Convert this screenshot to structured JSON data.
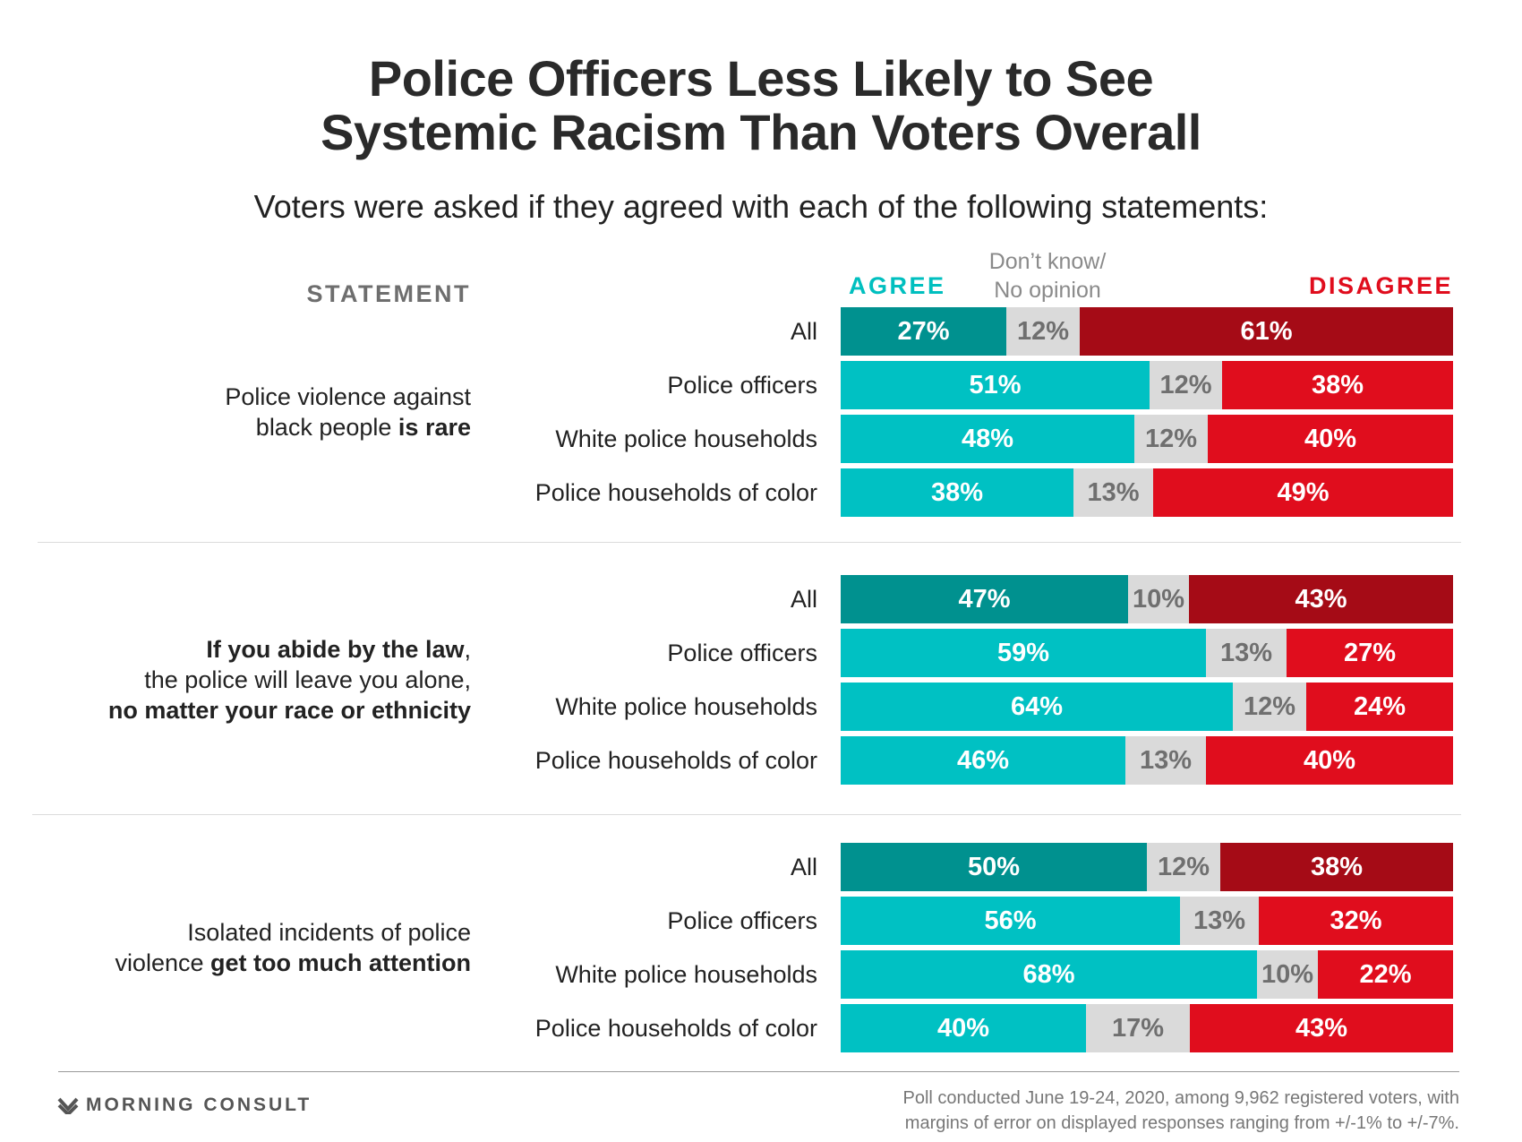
{
  "chart_data": {
    "type": "stacked-bar-horizontal",
    "title_line1": "Police Officers Less Likely to See",
    "title_line2": "Systemic Racism Than Voters Overall",
    "subtitle": "Voters were asked if they agreed with each of the following statements:",
    "column_header": "STATEMENT",
    "legend": {
      "agree": "AGREE",
      "dk_line1": "Don’t know/",
      "dk_line2": "No opinion",
      "disagree": "DISAGREE"
    },
    "colors": {
      "agree_all": "#00918f",
      "agree": "#00c1c3",
      "dk": "#dadada",
      "disagree_all": "#a50b16",
      "disagree": "#e00d1d"
    },
    "statements": [
      {
        "text_parts": [
          {
            "t": "Police violence against",
            "b": false
          },
          {
            "br": true
          },
          {
            "t": "black people ",
            "b": false
          },
          {
            "t": "is rare",
            "b": true
          }
        ],
        "groups": [
          {
            "label": "All",
            "agree": 27,
            "dk": 12,
            "disagree": 61
          },
          {
            "label": "Police officers",
            "agree": 51,
            "dk": 12,
            "disagree": 38
          },
          {
            "label": "White police households",
            "agree": 48,
            "dk": 12,
            "disagree": 40
          },
          {
            "label": "Police households of color",
            "agree": 38,
            "dk": 13,
            "disagree": 49
          }
        ]
      },
      {
        "text_parts": [
          {
            "t": "If you abide by the law",
            "b": true
          },
          {
            "t": ",",
            "b": false
          },
          {
            "br": true
          },
          {
            "t": "the police will leave you alone,",
            "b": false
          },
          {
            "br": true
          },
          {
            "t": "no matter your race or ethnicity",
            "b": true
          }
        ],
        "groups": [
          {
            "label": "All",
            "agree": 47,
            "dk": 10,
            "disagree": 43
          },
          {
            "label": "Police officers",
            "agree": 59,
            "dk": 13,
            "disagree": 27
          },
          {
            "label": "White police households",
            "agree": 64,
            "dk": 12,
            "disagree": 24
          },
          {
            "label": "Police households of color",
            "agree": 46,
            "dk": 13,
            "disagree": 40
          }
        ]
      },
      {
        "text_parts": [
          {
            "t": "Isolated incidents of police",
            "b": false
          },
          {
            "br": true
          },
          {
            "t": "violence ",
            "b": false
          },
          {
            "t": "get too much attention",
            "b": true
          }
        ],
        "groups": [
          {
            "label": "All",
            "agree": 50,
            "dk": 12,
            "disagree": 38
          },
          {
            "label": "Police officers",
            "agree": 56,
            "dk": 13,
            "disagree": 32
          },
          {
            "label": "White police households",
            "agree": 68,
            "dk": 10,
            "disagree": 22
          },
          {
            "label": "Police households of color",
            "agree": 40,
            "dk": 17,
            "disagree": 43
          }
        ]
      }
    ]
  },
  "footer": {
    "logo": "MORNING CONSULT",
    "note_line1": "Poll conducted June 19-24, 2020, among 9,962 registered voters, with",
    "note_line2": "margins of error on displayed responses ranging from +/-1% to +/-7%."
  }
}
